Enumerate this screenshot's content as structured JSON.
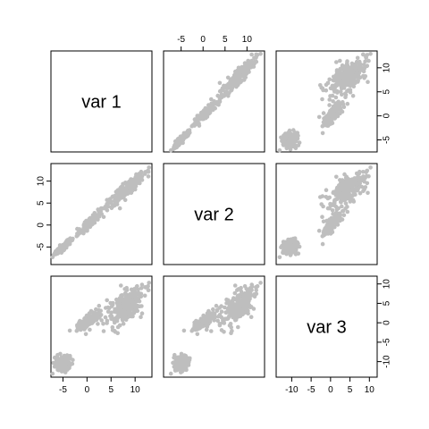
{
  "chart_data": {
    "type": "scatter",
    "variables": [
      "var 1",
      "var 2",
      "var 3"
    ],
    "ranges": {
      "var 1": [
        -7.5,
        13.5
      ],
      "var 2": [
        -9.0,
        14.0
      ],
      "var 3": [
        -14.0,
        12.0
      ]
    },
    "ticks": {
      "var 1": [
        -5,
        0,
        5,
        10
      ],
      "var 2": [
        -5,
        0,
        5,
        10
      ],
      "var 3": [
        -10,
        -5,
        0,
        5,
        10
      ]
    },
    "clusters": [
      {
        "n": 110,
        "mean": [
          -5.0,
          -5.0,
          -10.5
        ],
        "sd": [
          1.0,
          1.0,
          1.2
        ],
        "rho23": 0.2
      },
      {
        "n": 150,
        "mean": [
          0.5,
          0.5,
          0.5
        ],
        "sd": [
          1.2,
          1.3,
          1.2
        ],
        "rho23": 0.8
      },
      {
        "n": 260,
        "mean": [
          8.0,
          8.0,
          4.0
        ],
        "sd": [
          2.0,
          2.0,
          2.4
        ],
        "rho23": 0.6
      }
    ],
    "grid": false,
    "legend": "none"
  }
}
